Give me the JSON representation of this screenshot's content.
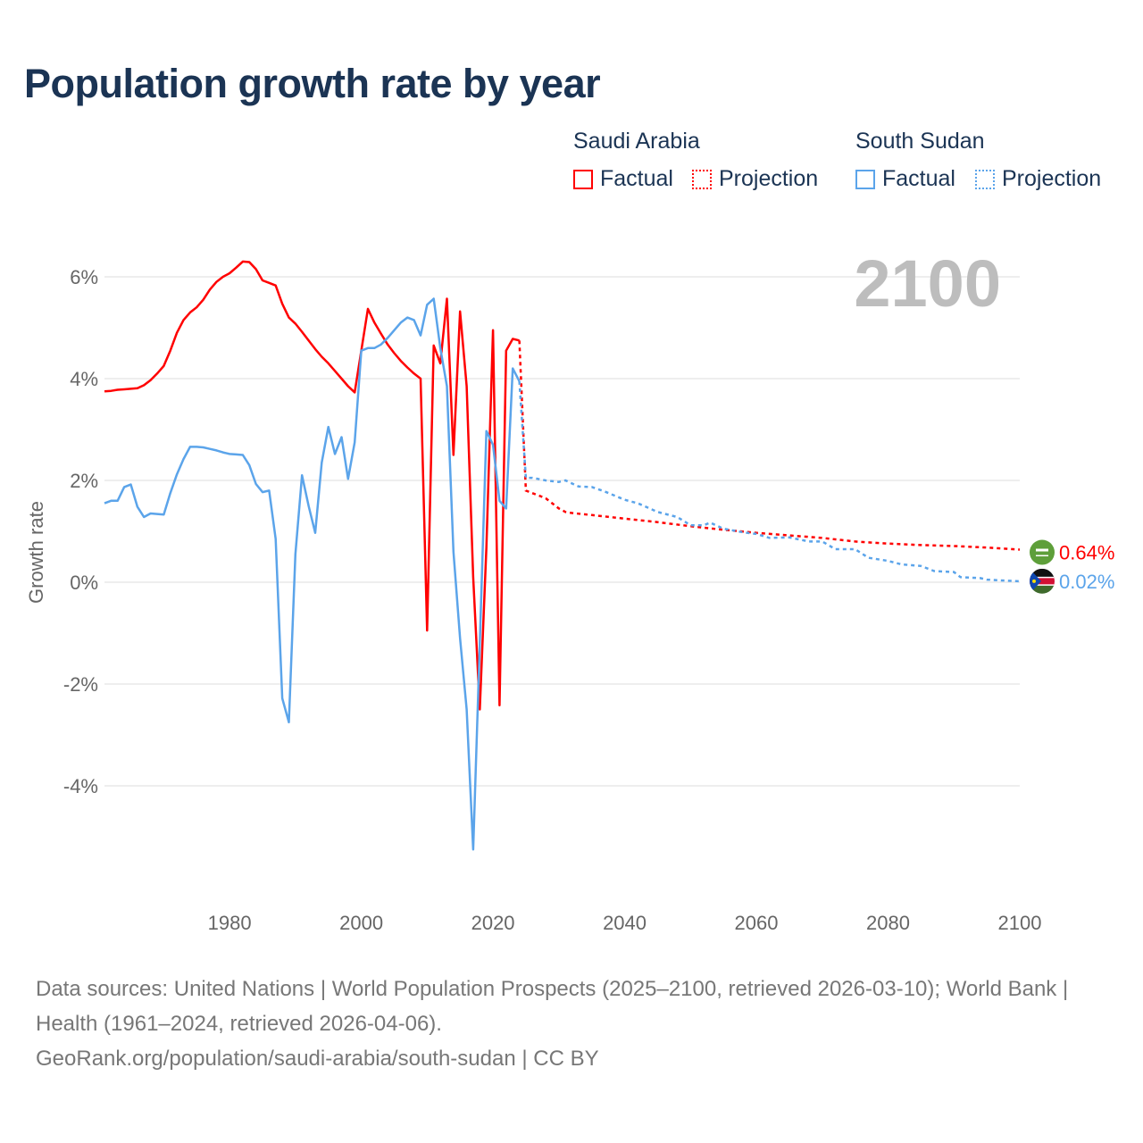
{
  "title": "Population growth rate by year",
  "legend": {
    "groups": [
      {
        "name": "Saudi Arabia",
        "factual": "Factual",
        "projection": "Projection",
        "color": "#ff0000"
      },
      {
        "name": "South Sudan",
        "factual": "Factual",
        "projection": "Projection",
        "color": "#5ba4ea"
      }
    ]
  },
  "year_display": "2100",
  "footer": {
    "sources": "Data sources: United Nations | World Population Prospects (2025–2100, retrieved 2026-03-10); World Bank | Health (1961–2024, retrieved 2026-04-06).",
    "link": "GeoRank.org/population/saudi-arabia/south-sudan | CC BY"
  },
  "chart_data": {
    "type": "line",
    "title": "Population growth rate by year",
    "xlabel": "",
    "ylabel": "Growth rate",
    "xlim": [
      1961,
      2100
    ],
    "ylim": [
      -5.5,
      6.6
    ],
    "x_ticks": [
      1980,
      2000,
      2020,
      2040,
      2060,
      2080,
      2100
    ],
    "y_ticks": [
      6,
      4,
      2,
      0,
      -2,
      -4
    ],
    "y_tick_labels": [
      "6%",
      "4%",
      "2%",
      "0%",
      "-2%",
      "-4%"
    ],
    "x_tick_labels": [
      "1980",
      "2000",
      "2020",
      "2040",
      "2060",
      "2080",
      "2100"
    ],
    "grid": true,
    "series": [
      {
        "name": "Saudi Arabia",
        "color": "#ff0000",
        "end_label": "0.64%",
        "factual": {
          "x": [
            1961,
            1962,
            1963,
            1964,
            1965,
            1966,
            1967,
            1968,
            1969,
            1970,
            1971,
            1972,
            1973,
            1974,
            1975,
            1976,
            1977,
            1978,
            1979,
            1980,
            1981,
            1982,
            1983,
            1984,
            1985,
            1986,
            1987,
            1988,
            1989,
            1990,
            1991,
            1992,
            1993,
            1994,
            1995,
            1996,
            1997,
            1998,
            1999,
            2000,
            2001,
            2002,
            2003,
            2004,
            2005,
            2006,
            2007,
            2008,
            2009,
            2010,
            2011,
            2012,
            2013,
            2014,
            2015,
            2016,
            2017,
            2018,
            2019,
            2020,
            2021,
            2022,
            2023,
            2024
          ],
          "y": [
            3.75,
            3.76,
            3.78,
            3.79,
            3.8,
            3.81,
            3.87,
            3.97,
            4.1,
            4.25,
            4.55,
            4.9,
            5.15,
            5.3,
            5.4,
            5.55,
            5.75,
            5.9,
            6.0,
            6.07,
            6.18,
            6.3,
            6.29,
            6.15,
            5.93,
            5.88,
            5.83,
            5.47,
            5.2,
            5.08,
            4.92,
            4.75,
            4.58,
            4.43,
            4.3,
            4.15,
            4.0,
            3.85,
            3.73,
            4.55,
            5.37,
            5.1,
            4.88,
            4.67,
            4.5,
            4.35,
            4.22,
            4.1,
            4.0,
            -0.95,
            4.65,
            4.3,
            5.57,
            2.5,
            5.32,
            3.85,
            0.1,
            -2.5,
            0.68,
            4.95,
            -2.42,
            4.55,
            4.78,
            4.75
          ]
        },
        "projection": {
          "x": [
            2024,
            2025,
            2026,
            2027,
            2028,
            2029,
            2030,
            2031,
            2032,
            2035,
            2040,
            2045,
            2050,
            2055,
            2060,
            2065,
            2070,
            2075,
            2080,
            2085,
            2090,
            2095,
            2100
          ],
          "y": [
            4.75,
            1.8,
            1.75,
            1.7,
            1.65,
            1.55,
            1.45,
            1.38,
            1.36,
            1.32,
            1.25,
            1.18,
            1.1,
            1.03,
            0.97,
            0.92,
            0.87,
            0.8,
            0.76,
            0.73,
            0.71,
            0.68,
            0.64
          ]
        }
      },
      {
        "name": "South Sudan",
        "color": "#5ba4ea",
        "end_label": "0.02%",
        "factual": {
          "x": [
            1961,
            1962,
            1963,
            1964,
            1965,
            1966,
            1967,
            1968,
            1969,
            1970,
            1971,
            1972,
            1973,
            1974,
            1975,
            1976,
            1977,
            1978,
            1979,
            1980,
            1981,
            1982,
            1983,
            1984,
            1985,
            1986,
            1987,
            1988,
            1989,
            1990,
            1991,
            1992,
            1993,
            1994,
            1995,
            1996,
            1997,
            1998,
            1999,
            2000,
            2001,
            2002,
            2003,
            2004,
            2005,
            2006,
            2007,
            2008,
            2009,
            2010,
            2011,
            2012,
            2013,
            2014,
            2015,
            2016,
            2017,
            2018,
            2019,
            2020,
            2021,
            2022,
            2023,
            2024
          ],
          "y": [
            1.55,
            1.6,
            1.6,
            1.87,
            1.92,
            1.48,
            1.28,
            1.35,
            1.34,
            1.33,
            1.75,
            2.12,
            2.42,
            2.66,
            2.66,
            2.65,
            2.62,
            2.59,
            2.55,
            2.52,
            2.51,
            2.5,
            2.3,
            1.93,
            1.77,
            1.8,
            0.85,
            -2.28,
            -2.75,
            0.55,
            2.1,
            1.5,
            0.97,
            2.35,
            3.05,
            2.52,
            2.85,
            2.03,
            2.75,
            4.55,
            4.6,
            4.6,
            4.67,
            4.8,
            4.95,
            5.1,
            5.2,
            5.15,
            4.85,
            5.45,
            5.57,
            4.6,
            3.85,
            0.6,
            -1.1,
            -2.5,
            -5.25,
            -1.2,
            2.97,
            2.7,
            1.6,
            1.45,
            4.2,
            3.95
          ]
        },
        "projection": {
          "x": [
            2024,
            2025,
            2026,
            2028,
            2030,
            2031,
            2033,
            2035,
            2037,
            2040,
            2042,
            2045,
            2048,
            2050,
            2052,
            2053,
            2055,
            2058,
            2060,
            2062,
            2065,
            2068,
            2070,
            2072,
            2075,
            2077,
            2080,
            2082,
            2085,
            2087,
            2090,
            2091,
            2094,
            2095,
            2098,
            2100
          ],
          "y": [
            3.95,
            2.05,
            2.05,
            2.0,
            1.97,
            2.0,
            1.88,
            1.87,
            1.78,
            1.62,
            1.55,
            1.38,
            1.28,
            1.12,
            1.12,
            1.17,
            1.05,
            0.98,
            0.95,
            0.87,
            0.88,
            0.8,
            0.8,
            0.65,
            0.65,
            0.48,
            0.42,
            0.35,
            0.32,
            0.22,
            0.2,
            0.1,
            0.08,
            0.05,
            0.03,
            0.02
          ]
        }
      }
    ]
  }
}
